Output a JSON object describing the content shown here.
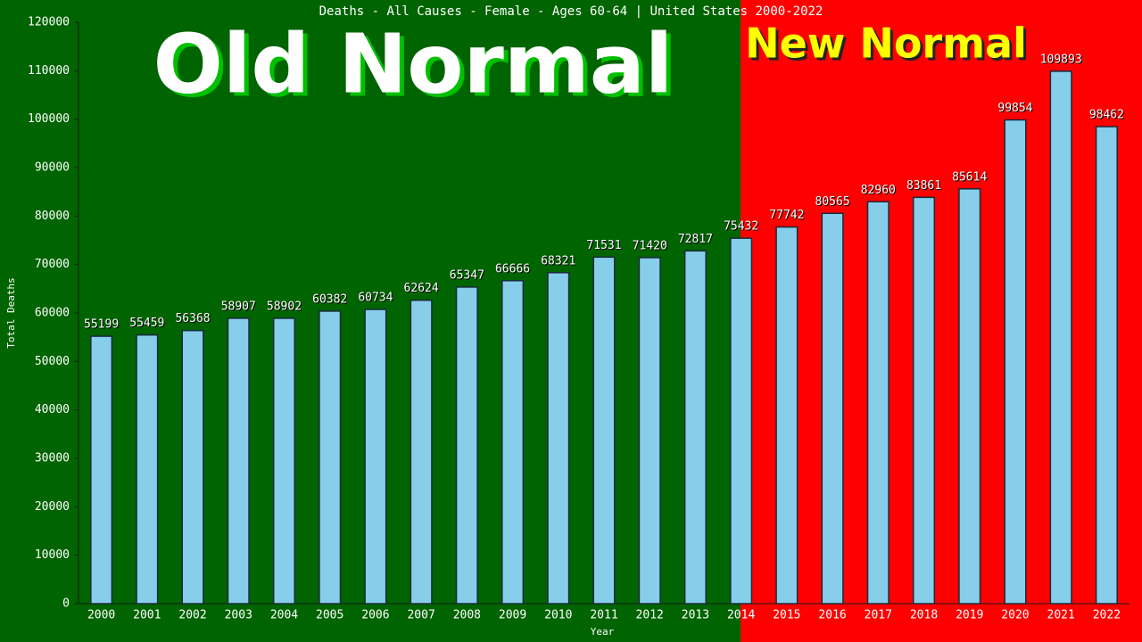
{
  "chart_data": {
    "type": "bar",
    "title": "Deaths - All Causes - Female - Ages 60-64 | United States 2000-2022",
    "x_label": "Year",
    "y_label": "Total Deaths",
    "annotations": [
      "Old Normal",
      "New Normal"
    ],
    "categories": [
      "2000",
      "2001",
      "2002",
      "2003",
      "2004",
      "2005",
      "2006",
      "2007",
      "2008",
      "2009",
      "2010",
      "2011",
      "2012",
      "2013",
      "2014",
      "2015",
      "2016",
      "2017",
      "2018",
      "2019",
      "2020",
      "2021",
      "2022"
    ],
    "values": [
      55199,
      55459,
      56368,
      58907,
      58902,
      60382,
      60734,
      62624,
      65347,
      66666,
      68321,
      71531,
      71420,
      72817,
      75432,
      77742,
      80565,
      82960,
      83861,
      85614,
      99854,
      109893,
      98462
    ],
    "color": "#87ceeb",
    "ylim": [
      0,
      120000
    ],
    "yticks": [
      0,
      10000,
      20000,
      30000,
      40000,
      50000,
      60000,
      70000,
      80000,
      90000,
      100000,
      110000,
      120000
    ]
  }
}
